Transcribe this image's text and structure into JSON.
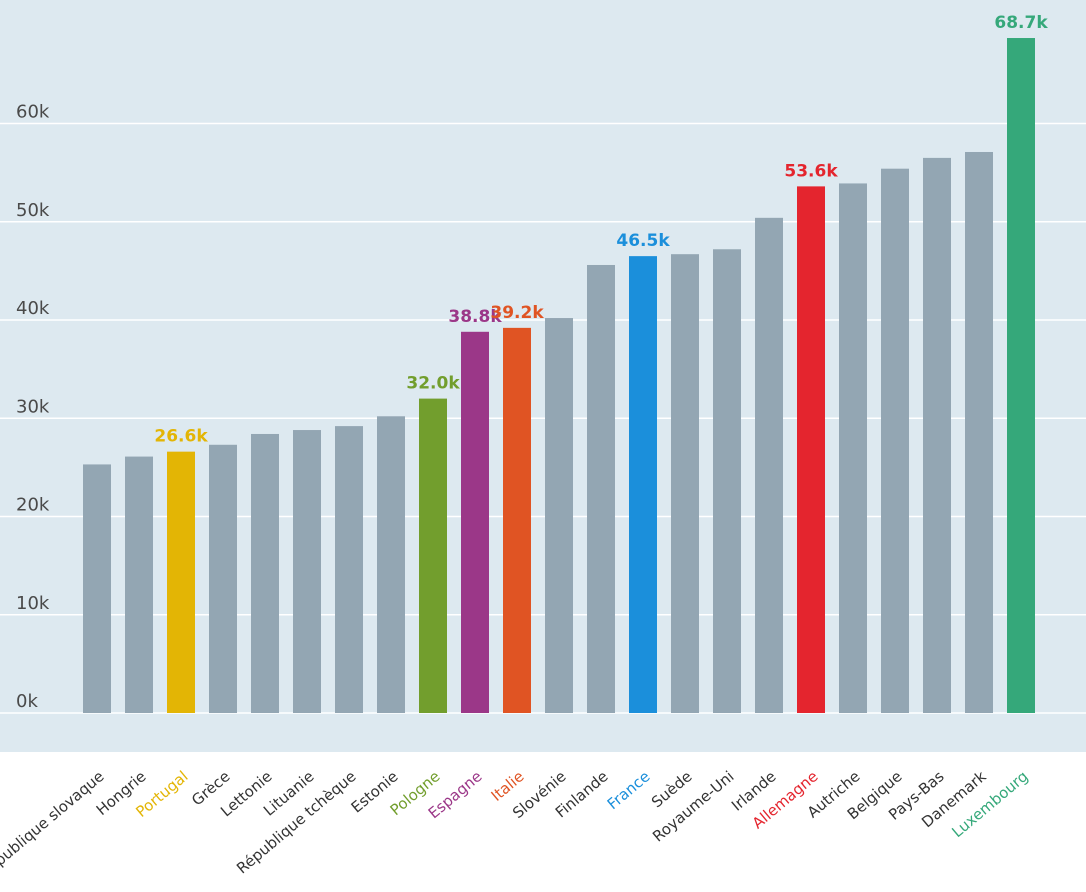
{
  "chart_data": {
    "type": "bar",
    "title": "",
    "xlabel": "",
    "ylabel": "",
    "ylim": [
      0,
      70000
    ],
    "yticks": [
      {
        "value": 0,
        "label": "0k"
      },
      {
        "value": 10000,
        "label": "10k"
      },
      {
        "value": 20000,
        "label": "20k"
      },
      {
        "value": 30000,
        "label": "30k"
      },
      {
        "value": 40000,
        "label": "40k"
      },
      {
        "value": 50000,
        "label": "50k"
      },
      {
        "value": 60000,
        "label": "60k"
      }
    ],
    "grid": true,
    "legend": "none",
    "default_color": "#93a6b3",
    "background_color": "#dde9f0",
    "bars": [
      {
        "category": "République slovaque",
        "value": 25300
      },
      {
        "category": "Hongrie",
        "value": 26100
      },
      {
        "category": "Portugal",
        "value": 26600,
        "color": "#e3b505",
        "label": "26.6k"
      },
      {
        "category": "Grèce",
        "value": 27300
      },
      {
        "category": "Lettonie",
        "value": 28400
      },
      {
        "category": "Lituanie",
        "value": 28800
      },
      {
        "category": "République tchèque",
        "value": 29200
      },
      {
        "category": "Estonie",
        "value": 30200
      },
      {
        "category": "Pologne",
        "value": 32000,
        "color": "#729e2d",
        "label": "32.0k"
      },
      {
        "category": "Espagne",
        "value": 38800,
        "color": "#9b3788",
        "label": "38.8k"
      },
      {
        "category": "Italie",
        "value": 39200,
        "color": "#e05423",
        "label": "39.2k"
      },
      {
        "category": "Slovénie",
        "value": 40200
      },
      {
        "category": "Finlande",
        "value": 45600
      },
      {
        "category": "France",
        "value": 46500,
        "color": "#1b8fdb",
        "label": "46.5k"
      },
      {
        "category": "Suède",
        "value": 46700
      },
      {
        "category": "Royaume-Uni",
        "value": 47200
      },
      {
        "category": "Irlande",
        "value": 50400
      },
      {
        "category": "Allemagne",
        "value": 53600,
        "color": "#e4252e",
        "label": "53.6k"
      },
      {
        "category": "Autriche",
        "value": 53900
      },
      {
        "category": "Belgique",
        "value": 55400
      },
      {
        "category": "Pays-Bas",
        "value": 56500
      },
      {
        "category": "Danemark",
        "value": 57100
      },
      {
        "category": "Luxembourg",
        "value": 68700,
        "color": "#35a87a",
        "label": "68.7k"
      }
    ]
  }
}
